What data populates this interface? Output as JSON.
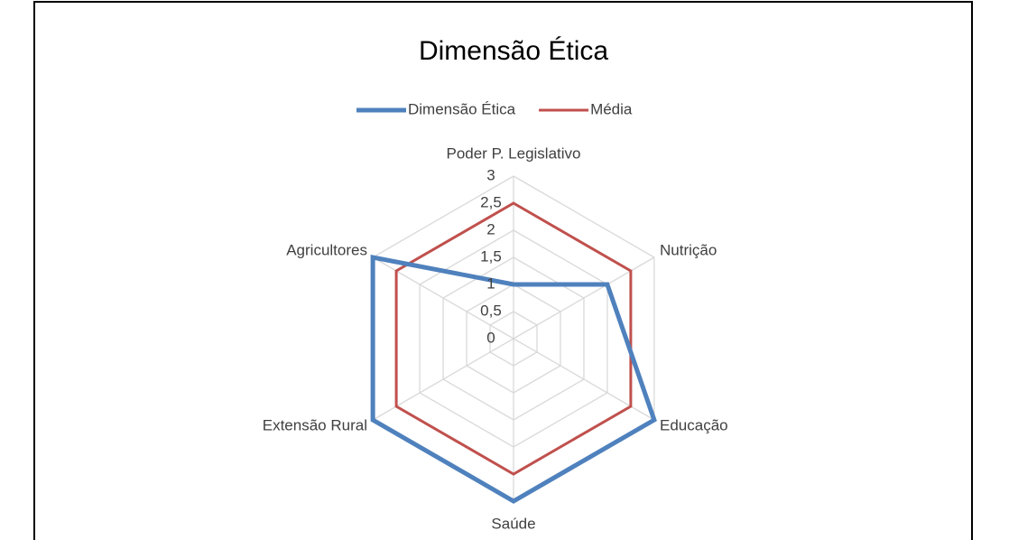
{
  "chart_data": {
    "type": "radar",
    "title": "Dimensão Ética",
    "categories": [
      "Poder P. Legislativo",
      "Nutrição",
      "Educação",
      "Saúde",
      "Extensão Rural",
      "Agricultores"
    ],
    "series": [
      {
        "name": "Dimensão Ética",
        "color": "#4f81bd",
        "values": [
          1,
          2,
          3,
          3,
          3,
          3
        ]
      },
      {
        "name": "Média",
        "color": "#c0504d",
        "values": [
          2.5,
          2.5,
          2.5,
          2.5,
          2.5,
          2.5
        ]
      }
    ],
    "ylim": [
      0,
      3
    ],
    "yticks": [
      0,
      {
        "value": 0.5,
        "label": "0,5"
      },
      1,
      {
        "value": 1.5,
        "label": "1,5"
      },
      2,
      {
        "value": 2.5,
        "label": "2,5"
      },
      3
    ],
    "grid": true,
    "legend": "top"
  }
}
